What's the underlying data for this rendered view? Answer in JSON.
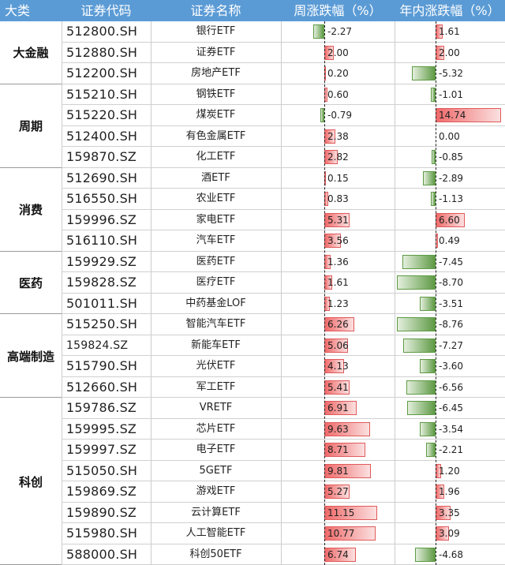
{
  "table": {
    "headers": [
      "大类",
      "证券代码",
      "证券名称",
      "周涨跌幅（%）",
      "年内涨跌幅（%）"
    ]
  },
  "groups": [
    {
      "name": "大金融",
      "rows": 3
    },
    {
      "name": "周期",
      "rows": 4
    },
    {
      "name": "消费",
      "rows": 4
    },
    {
      "name": "医药",
      "rows": 3
    },
    {
      "name": "高端制造",
      "rows": 4
    },
    {
      "name": "科创",
      "rows": 8
    }
  ],
  "chart_data": {
    "type": "table",
    "columns": [
      "证券代码",
      "证券名称",
      "周涨跌幅（%）",
      "年内涨跌幅（%）"
    ],
    "rows": [
      {
        "code": "512800.SH",
        "name": "银行ETF",
        "week": -2.27,
        "week_text": "-2.27",
        "ytd": 1.61,
        "ytd_text": "1.61"
      },
      {
        "code": "512880.SH",
        "name": "证券ETF",
        "week": 2.0,
        "week_text": "2.00",
        "ytd": 2.0,
        "ytd_text": "2.00"
      },
      {
        "code": "512200.SH",
        "name": "房地产ETF",
        "week": 0.2,
        "week_text": "0.20",
        "ytd": -5.32,
        "ytd_text": "-5.32"
      },
      {
        "code": "515210.SH",
        "name": "钢铁ETF",
        "week": 0.6,
        "week_text": "0.60",
        "ytd": -1.01,
        "ytd_text": "-1.01"
      },
      {
        "code": "515220.SH",
        "name": "煤炭ETF",
        "week": -0.79,
        "week_text": "-0.79",
        "ytd": 14.74,
        "ytd_text": "14.74"
      },
      {
        "code": "512400.SH",
        "name": "有色金属ETF",
        "week": 2.38,
        "week_text": "2.38",
        "ytd": 0.0,
        "ytd_text": "0.00"
      },
      {
        "code": "159870.SZ",
        "name": "化工ETF",
        "week": 2.82,
        "week_text": "2.82",
        "ytd": -0.85,
        "ytd_text": "-0.85"
      },
      {
        "code": "512690.SH",
        "name": "酒ETF",
        "week": 0.15,
        "week_text": "0.15",
        "ytd": -2.89,
        "ytd_text": "-2.89"
      },
      {
        "code": "516550.SH",
        "name": "农业ETF",
        "week": 0.83,
        "week_text": "0.83",
        "ytd": -1.13,
        "ytd_text": "-1.13"
      },
      {
        "code": "159996.SZ",
        "name": "家电ETF",
        "week": 5.31,
        "week_text": "5.31",
        "ytd": 6.6,
        "ytd_text": "6.60"
      },
      {
        "code": "516110.SH",
        "name": "汽车ETF",
        "week": 3.56,
        "week_text": "3.56",
        "ytd": 0.49,
        "ytd_text": "0.49"
      },
      {
        "code": "159929.SZ",
        "name": "医药ETF",
        "week": 1.36,
        "week_text": "1.36",
        "ytd": -7.45,
        "ytd_text": "-7.45"
      },
      {
        "code": "159828.SZ",
        "name": "医疗ETF",
        "week": 1.61,
        "week_text": "1.61",
        "ytd": -8.7,
        "ytd_text": "-8.70"
      },
      {
        "code": "501011.SH",
        "name": "中药基金LOF",
        "week": 1.23,
        "week_text": "1.23",
        "ytd": -3.51,
        "ytd_text": "-3.51"
      },
      {
        "code": "515250.SH",
        "name": "智能汽车ETF",
        "week": 6.26,
        "week_text": "6.26",
        "ytd": -8.76,
        "ytd_text": "-8.76"
      },
      {
        "code": "159824.SZ",
        "name": "新能车ETF",
        "week": 5.06,
        "week_text": "5.06",
        "ytd": -7.27,
        "ytd_text": "-7.27"
      },
      {
        "code": "515790.SH",
        "name": "光伏ETF",
        "week": 4.13,
        "week_text": "4.13",
        "ytd": -3.6,
        "ytd_text": "-3.60"
      },
      {
        "code": "512660.SH",
        "name": "军工ETF",
        "week": 5.41,
        "week_text": "5.41",
        "ytd": -6.56,
        "ytd_text": "-6.56"
      },
      {
        "code": "159786.SZ",
        "name": "VRETF",
        "week": 6.91,
        "week_text": "6.91",
        "ytd": -6.45,
        "ytd_text": "-6.45"
      },
      {
        "code": "159995.SZ",
        "name": "芯片ETF",
        "week": 9.63,
        "week_text": "9.63",
        "ytd": -3.54,
        "ytd_text": "-3.54"
      },
      {
        "code": "159997.SZ",
        "name": "电子ETF",
        "week": 8.71,
        "week_text": "8.71",
        "ytd": -2.21,
        "ytd_text": "-2.21"
      },
      {
        "code": "515050.SH",
        "name": "5GETF",
        "week": 9.81,
        "week_text": "9.81",
        "ytd": 1.2,
        "ytd_text": "1.20"
      },
      {
        "code": "159869.SZ",
        "name": "游戏ETF",
        "week": 5.27,
        "week_text": "5.27",
        "ytd": 1.96,
        "ytd_text": "1.96"
      },
      {
        "code": "159890.SZ",
        "name": "云计算ETF",
        "week": 11.15,
        "week_text": "11.15",
        "ytd": 3.35,
        "ytd_text": "3.35"
      },
      {
        "code": "515980.SH",
        "name": "人工智能ETF",
        "week": 10.77,
        "week_text": "10.77",
        "ytd": 3.09,
        "ytd_text": "3.09"
      },
      {
        "code": "588000.SH",
        "name": "科创50ETF",
        "week": 6.74,
        "week_text": "6.74",
        "ytd": -4.68,
        "ytd_text": "-4.68"
      }
    ]
  },
  "colors": {
    "header_bg": "#5b9bd5",
    "positive_bar": "#f06a6a",
    "negative_bar": "#5e9a45"
  }
}
